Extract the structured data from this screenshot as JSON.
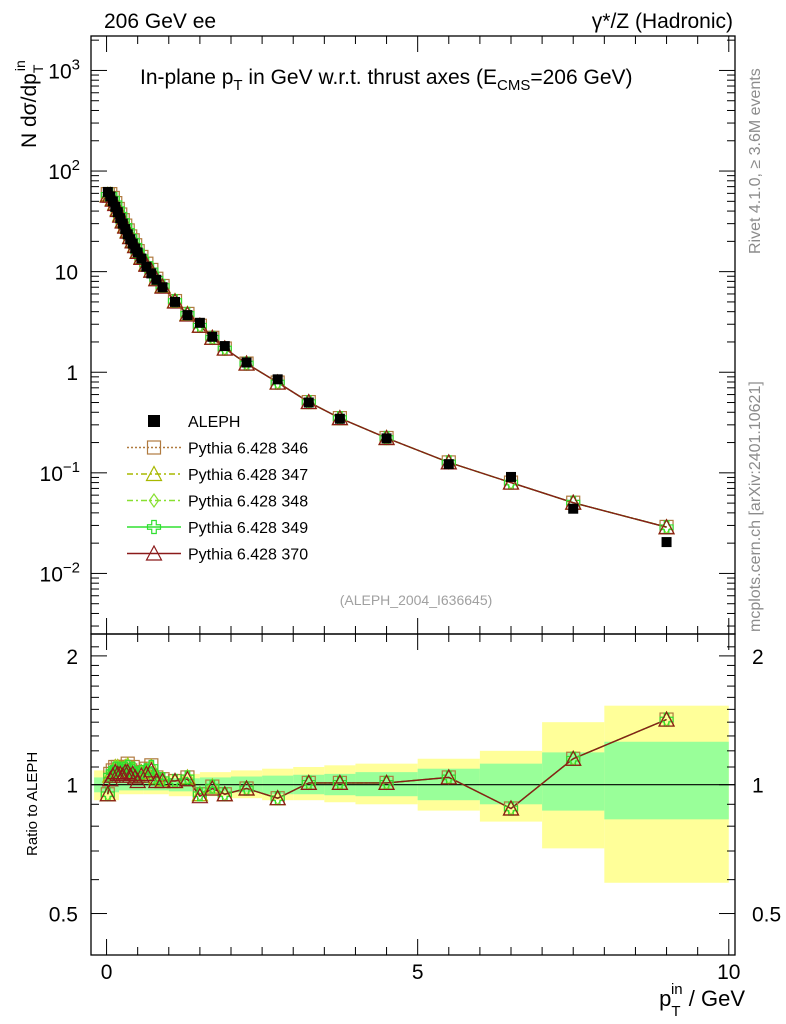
{
  "header": {
    "left": "206 GeV ee",
    "right": "γ*/Z (Hadronic)"
  },
  "side_labels": {
    "top": "Rivet 4.1.0, ≥ 3.6M events",
    "bottom": "mcplots.cern.ch [arXiv:2401.10621]"
  },
  "colors": {
    "data": "#000000",
    "p346": "#b07a3f",
    "p347": "#a8b800",
    "p348": "#88e030",
    "p349": "#30e030",
    "p370": "#8b1a1a",
    "band_inner": "#99ff99",
    "band_outer": "#ffff99"
  },
  "chart_data": [
    {
      "type": "scatter",
      "title": "In-plane p_T in GeV w.r.t. thrust axes (E_CMS=206 GeV)",
      "title_parts": {
        "a": "In-plane p",
        "a_sub": "T",
        "b": " in GeV w.r.t. thrust axes (E",
        "b_sub": "CMS",
        "c": "=206 GeV)"
      },
      "ylabel": {
        "main": "N  dσ/dp",
        "sub": "T",
        "sup": "in"
      },
      "y_scale": "log",
      "ylim": [
        0.0025,
        2200
      ],
      "xlim": [
        -0.25,
        10.1
      ],
      "y_tick_labels": [
        "10^-2",
        "10^-1",
        "1",
        "10",
        "10^2",
        "10^3"
      ],
      "y_tick_text": {
        "one": "1",
        "ten": "10",
        "base": "10",
        "exp_m2": "−2",
        "exp_m1": "−1",
        "exp_2": "2",
        "exp_3": "3"
      },
      "watermark": "(ALEPH_2004_I636645)",
      "legend_position": "left-middle",
      "x": [
        0.02,
        0.06,
        0.1,
        0.14,
        0.18,
        0.22,
        0.26,
        0.3,
        0.34,
        0.38,
        0.42,
        0.46,
        0.5,
        0.56,
        0.64,
        0.72,
        0.8,
        0.9,
        1.1,
        1.3,
        1.5,
        1.7,
        1.9,
        2.25,
        2.75,
        3.25,
        3.75,
        4.5,
        5.5,
        6.5,
        7.5,
        9.0
      ],
      "series": [
        {
          "name": "ALEPH",
          "legend_label": "ALEPH",
          "values": [
            62,
            56,
            50,
            44,
            39,
            34,
            30,
            26.5,
            23.5,
            21,
            19,
            17,
            15.5,
            13.5,
            11.2,
            9.6,
            8.3,
            7.0,
            5.0,
            3.7,
            3.1,
            2.25,
            1.82,
            1.25,
            0.85,
            0.5,
            0.345,
            0.22,
            0.122,
            0.091,
            0.044,
            0.0205
          ]
        },
        {
          "name": "Pythia 6.428 346",
          "legend_label": "Pythia 6.428 346",
          "values": [
            59,
            59,
            54,
            48,
            42,
            37,
            32.5,
            28.7,
            25.7,
            22.4,
            20.5,
            18.3,
            16.0,
            14.0,
            12.0,
            10.4,
            8.5,
            7.2,
            5.1,
            3.8,
            2.9,
            2.2,
            1.72,
            1.22,
            0.79,
            0.505,
            0.35,
            0.222,
            0.127,
            0.08,
            0.0505,
            0.029
          ]
        },
        {
          "name": "Pythia 6.428 347",
          "legend_label": "Pythia 6.428 347",
          "values": [
            58,
            58,
            53,
            48,
            42,
            37,
            32,
            28.5,
            25.5,
            22.2,
            20.3,
            18.2,
            15.9,
            13.9,
            11.9,
            10.3,
            8.5,
            7.2,
            5.1,
            3.8,
            2.9,
            2.2,
            1.72,
            1.22,
            0.79,
            0.505,
            0.35,
            0.222,
            0.127,
            0.08,
            0.0505,
            0.0288
          ]
        },
        {
          "name": "Pythia 6.428 348",
          "legend_label": "Pythia 6.428 348",
          "values": [
            58.5,
            58.5,
            53.5,
            48,
            42,
            37,
            32.2,
            28.6,
            25.6,
            22.3,
            20.4,
            18.2,
            16.0,
            13.9,
            11.9,
            10.3,
            8.5,
            7.2,
            5.1,
            3.8,
            2.9,
            2.2,
            1.72,
            1.22,
            0.79,
            0.505,
            0.35,
            0.222,
            0.127,
            0.08,
            0.0505,
            0.0289
          ]
        },
        {
          "name": "Pythia 6.428 349",
          "legend_label": "Pythia 6.428 349",
          "values": [
            58,
            58.2,
            53.2,
            47.8,
            41.8,
            36.8,
            32,
            28.5,
            25.4,
            22.2,
            20.3,
            18.1,
            15.9,
            13.9,
            11.9,
            10.3,
            8.5,
            7.2,
            5.1,
            3.8,
            2.9,
            2.2,
            1.72,
            1.22,
            0.79,
            0.505,
            0.35,
            0.222,
            0.127,
            0.08,
            0.0505,
            0.0288
          ]
        },
        {
          "name": "Pythia 6.428 370",
          "legend_label": "Pythia 6.428 370",
          "values": [
            57,
            57,
            52,
            47,
            41,
            36,
            31.5,
            28.0,
            25.0,
            22.0,
            20.0,
            17.9,
            15.7,
            13.7,
            11.7,
            10.2,
            8.4,
            7.1,
            5.05,
            3.75,
            2.9,
            2.2,
            1.72,
            1.22,
            0.79,
            0.505,
            0.35,
            0.222,
            0.127,
            0.08,
            0.0505,
            0.0288
          ]
        }
      ]
    },
    {
      "type": "line",
      "ylabel": "Ratio to ALEPH",
      "xlabel": {
        "main": "p",
        "sub": "T",
        "sup": "in",
        "unit": " / GeV"
      },
      "ylim": [
        0.4,
        2.25
      ],
      "xlim": [
        -0.25,
        10.1
      ],
      "y_scale": "log",
      "y_ticks": [
        0.5,
        1,
        2
      ],
      "y_tick_labels": [
        "0.5",
        "1",
        "2"
      ],
      "x_ticks": [
        0,
        5,
        10
      ],
      "x_tick_labels": [
        "0",
        "5",
        "10"
      ],
      "reference": 1.0,
      "bands": [
        {
          "x": [
            -0.2,
            0.2,
            0.6,
            1.0,
            1.5,
            2.0,
            2.5,
            3.0,
            3.5,
            4.0,
            5.0,
            6.0,
            7.0,
            8.0,
            10.0
          ],
          "inner_lo": [
            0.96,
            0.97,
            0.97,
            0.965,
            0.965,
            0.96,
            0.95,
            0.95,
            0.945,
            0.94,
            0.92,
            0.9,
            0.87,
            0.83,
            0.83
          ],
          "inner_hi": [
            1.04,
            1.03,
            1.03,
            1.035,
            1.04,
            1.045,
            1.05,
            1.055,
            1.06,
            1.07,
            1.09,
            1.12,
            1.19,
            1.26,
            1.26
          ],
          "outer_lo": [
            0.92,
            0.95,
            0.95,
            0.94,
            0.94,
            0.93,
            0.92,
            0.92,
            0.91,
            0.9,
            0.87,
            0.82,
            0.71,
            0.59,
            0.59
          ],
          "outer_hi": [
            1.08,
            1.05,
            1.05,
            1.06,
            1.07,
            1.08,
            1.09,
            1.1,
            1.11,
            1.12,
            1.15,
            1.2,
            1.4,
            1.53,
            1.53
          ]
        }
      ],
      "x": [
        0.02,
        0.06,
        0.1,
        0.14,
        0.18,
        0.22,
        0.26,
        0.3,
        0.34,
        0.38,
        0.42,
        0.46,
        0.5,
        0.56,
        0.64,
        0.72,
        0.8,
        0.9,
        1.1,
        1.3,
        1.5,
        1.7,
        1.9,
        2.25,
        2.75,
        3.25,
        3.75,
        4.5,
        5.5,
        6.5,
        7.5,
        9.0
      ],
      "series": [
        {
          "name": "Pythia 6.428 346",
          "values": [
            0.95,
            1.06,
            1.08,
            1.1,
            1.1,
            1.09,
            1.1,
            1.1,
            1.12,
            1.08,
            1.1,
            1.06,
            1.05,
            1.07,
            1.09,
            1.11,
            1.04,
            1.03,
            1.02,
            1.04,
            0.95,
            0.99,
            0.95,
            0.98,
            0.93,
            1.01,
            1.01,
            1.01,
            1.04,
            0.88,
            1.15,
            1.42
          ]
        },
        {
          "name": "Pythia 6.428 347",
          "values": [
            0.95,
            1.05,
            1.08,
            1.1,
            1.1,
            1.09,
            1.09,
            1.1,
            1.11,
            1.08,
            1.09,
            1.06,
            1.05,
            1.07,
            1.08,
            1.1,
            1.04,
            1.03,
            1.02,
            1.04,
            0.95,
            0.99,
            0.95,
            0.98,
            0.93,
            1.01,
            1.01,
            1.01,
            1.04,
            0.88,
            1.15,
            1.42
          ]
        },
        {
          "name": "Pythia 6.428 348",
          "values": [
            0.95,
            1.05,
            1.08,
            1.1,
            1.1,
            1.09,
            1.09,
            1.1,
            1.11,
            1.08,
            1.09,
            1.06,
            1.05,
            1.07,
            1.08,
            1.1,
            1.04,
            1.03,
            1.02,
            1.04,
            0.95,
            0.99,
            0.95,
            0.98,
            0.93,
            1.01,
            1.01,
            1.01,
            1.04,
            0.88,
            1.15,
            1.42
          ]
        },
        {
          "name": "Pythia 6.428 349",
          "values": [
            0.95,
            1.05,
            1.07,
            1.09,
            1.09,
            1.08,
            1.09,
            1.09,
            1.1,
            1.08,
            1.09,
            1.06,
            1.05,
            1.07,
            1.08,
            1.1,
            1.04,
            1.03,
            1.02,
            1.04,
            0.95,
            0.99,
            0.95,
            0.98,
            0.93,
            1.01,
            1.01,
            1.01,
            1.04,
            0.88,
            1.15,
            1.42
          ]
        },
        {
          "name": "Pythia 6.428 370",
          "values": [
            0.95,
            1.03,
            1.05,
            1.07,
            1.06,
            1.06,
            1.05,
            1.07,
            1.07,
            1.05,
            1.06,
            1.04,
            1.02,
            1.05,
            1.06,
            1.08,
            1.02,
            1.02,
            1.02,
            1.03,
            0.94,
            0.98,
            0.95,
            0.98,
            0.93,
            1.01,
            1.01,
            1.01,
            1.04,
            0.88,
            1.15,
            1.42
          ]
        }
      ]
    }
  ]
}
